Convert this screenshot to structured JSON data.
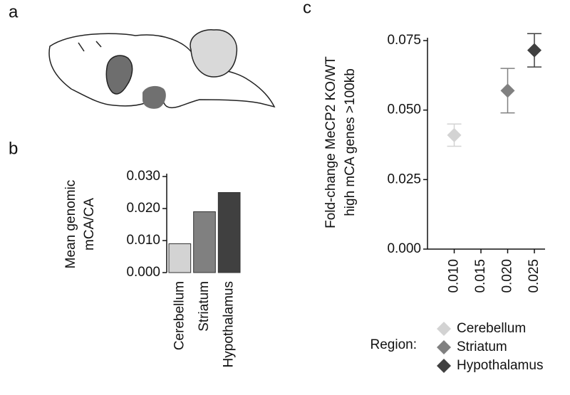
{
  "panel_labels": [
    "a",
    "b",
    "c"
  ],
  "chart_data": [
    {
      "type": "bar",
      "ylabel": [
        "Mean genomic",
        "mCA/CA"
      ],
      "categories": [
        "Cerebellum",
        "Striatum",
        "Hypothalamus"
      ],
      "values": [
        0.009,
        0.019,
        0.025
      ],
      "colors": [
        "#d3d3d3",
        "#808080",
        "#404040"
      ],
      "ylim": [
        0,
        0.03
      ],
      "yticks": [
        {
          "value": 0,
          "label": "0.000"
        },
        {
          "value": 0.01,
          "label": "0.010"
        },
        {
          "value": 0.02,
          "label": "0.020"
        },
        {
          "value": 0.03,
          "label": "0.030"
        }
      ]
    },
    {
      "type": "scatter",
      "ylabel": [
        "Fold-change MeCP2 KO/WT",
        "high mCA genes >100kb"
      ],
      "legend_title": "Region:",
      "series": [
        {
          "name": "Cerebellum",
          "color": "#d3d3d3",
          "x": [
            0.01
          ],
          "values": [
            0.041
          ],
          "errors": [
            0.004
          ]
        },
        {
          "name": "Striatum",
          "color": "#808080",
          "x": [
            0.02
          ],
          "values": [
            0.057
          ],
          "errors": [
            0.008
          ]
        },
        {
          "name": "Hypothalamus",
          "color": "#404040",
          "x": [
            0.025
          ],
          "values": [
            0.0715
          ],
          "errors": [
            0.006
          ]
        }
      ],
      "xlim": [
        0.005,
        0.027
      ],
      "xticks": [
        {
          "value": 0.01,
          "label": "0.010"
        },
        {
          "value": 0.015,
          "label": "0.015"
        },
        {
          "value": 0.02,
          "label": "0.020"
        },
        {
          "value": 0.025,
          "label": "0.025"
        }
      ],
      "ylim": [
        0,
        0.075
      ],
      "yticks": [
        {
          "value": 0,
          "label": "0.000"
        },
        {
          "value": 0.025,
          "label": "0.025"
        },
        {
          "value": 0.05,
          "label": "0.050"
        },
        {
          "value": 0.075,
          "label": "0.075"
        }
      ]
    }
  ]
}
